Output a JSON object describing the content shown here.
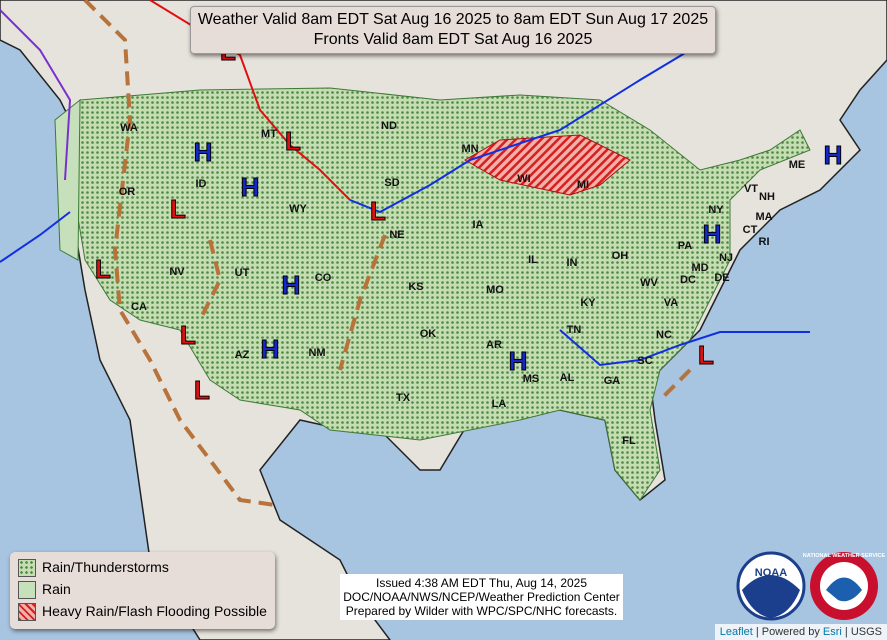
{
  "header": {
    "line1": "Weather Valid 8am EDT Sat Aug 16 2025 to 8am EDT Sun Aug 17 2025",
    "line2": "Fronts Valid 8am EDT Sat Aug 16 2025"
  },
  "legend": {
    "items": [
      "Rain/Thunderstorms",
      "Rain",
      "Heavy Rain/Flash Flooding Possible"
    ]
  },
  "issued": {
    "lines": [
      "Issued  4:38 AM EDT Thu, Aug 14, 2025",
      "DOC/NOAA/NWS/NCEP/Weather Prediction Center",
      "Prepared by Wilder with WPC/SPC/NHC forecasts."
    ]
  },
  "states": [
    "WA",
    "OR",
    "ID",
    "MT",
    "WY",
    "NV",
    "CA",
    "UT",
    "CO",
    "AZ",
    "NM",
    "ND",
    "SD",
    "NE",
    "KS",
    "OK",
    "TX",
    "MN",
    "WI",
    "MI",
    "IA",
    "IL",
    "IN",
    "OH",
    "MO",
    "KY",
    "TN",
    "AR",
    "MS",
    "AL",
    "LA",
    "GA",
    "FL",
    "SC",
    "NC",
    "VA",
    "WV",
    "PA",
    "NY",
    "MD",
    "DE",
    "NJ",
    "DC",
    "ME",
    "VT",
    "NH",
    "MA",
    "CT",
    "RI"
  ],
  "pressure_labels": {
    "high": "H",
    "low": "L"
  },
  "logo": {
    "noaa": "NOAA",
    "nws": "NATIONAL WEATHER SERVICE"
  },
  "attribution": {
    "leaflet": "Leaflet",
    "powered": "| Powered by",
    "esri": "Esri",
    "usgs": "| USGS"
  }
}
